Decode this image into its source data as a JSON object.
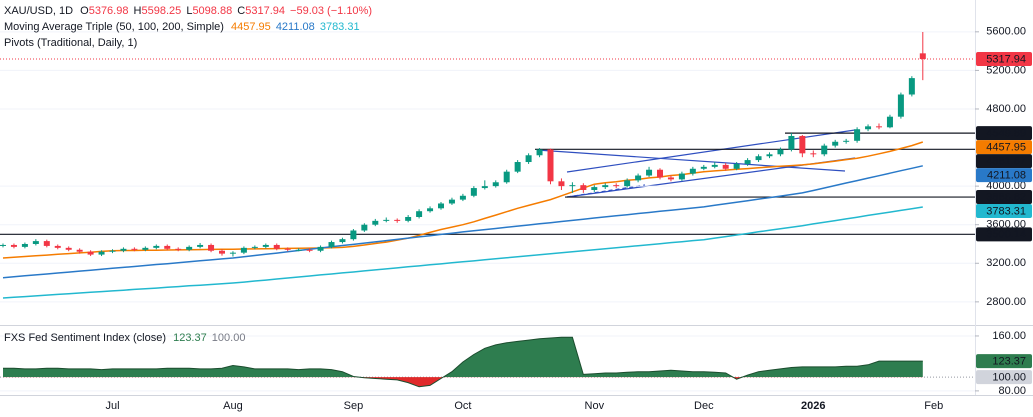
{
  "chart_data": [
    {
      "type": "candlestick",
      "title": "XAU/USD, 1D",
      "legend_letters": [
        "O",
        "H",
        "L",
        "C"
      ],
      "change": "−59.03 (−1.10%)",
      "ma_title": "Moving Average Triple (50, 100, 200, Simple)",
      "pivot_title": "Pivots (Traditional, Daily, 1)",
      "categories": [
        null,
        null,
        null,
        null,
        null,
        null,
        null,
        null,
        null,
        null,
        "Jul",
        null,
        null,
        null,
        null,
        null,
        null,
        null,
        null,
        null,
        null,
        "Aug",
        null,
        null,
        null,
        null,
        null,
        null,
        null,
        null,
        null,
        null,
        "Sep",
        null,
        null,
        null,
        null,
        null,
        null,
        null,
        null,
        null,
        "Oct",
        null,
        null,
        null,
        null,
        null,
        null,
        null,
        null,
        null,
        null,
        null,
        "Nov",
        null,
        null,
        null,
        null,
        null,
        null,
        null,
        null,
        null,
        "Dec",
        null,
        null,
        null,
        null,
        null,
        null,
        null,
        null,
        null,
        "2026",
        null,
        null,
        null,
        null,
        null,
        null,
        null,
        null,
        null,
        null,
        "Feb"
      ],
      "open": [
        3380,
        3390,
        3370,
        3400,
        3430,
        3380,
        3360,
        3340,
        3320,
        3290,
        3320,
        3330,
        3350,
        3340,
        3360,
        3380,
        3350,
        3340,
        3370,
        3390,
        3330,
        3300,
        3310,
        3360,
        3370,
        3390,
        3350,
        3340,
        3340,
        3330,
        3370,
        3420,
        3450,
        3540,
        3600,
        3640,
        3650,
        3640,
        3680,
        3740,
        3770,
        3820,
        3860,
        3900,
        3980,
        4000,
        4040,
        4150,
        4250,
        4320,
        4381,
        4050,
        4000,
        4010,
        3960,
        3990,
        4010,
        4000,
        4060,
        4110,
        4170,
        4090,
        4070,
        4130,
        4180,
        4200,
        4220,
        4180,
        4230,
        4270,
        4310,
        4330,
        4380,
        4520,
        4340,
        4330,
        4420,
        4460,
        4470,
        4590,
        4620,
        4610,
        4720,
        4950,
        5376.98,
        null
      ],
      "high": [
        3405,
        3405,
        3415,
        3450,
        3445,
        3395,
        3375,
        3355,
        3335,
        3335,
        3345,
        3365,
        3365,
        3375,
        3395,
        3395,
        3365,
        3385,
        3410,
        3405,
        3345,
        3325,
        3375,
        3385,
        3405,
        3405,
        3365,
        3355,
        3355,
        3385,
        3435,
        3465,
        3555,
        3615,
        3660,
        3675,
        3665,
        3700,
        3760,
        3790,
        3835,
        3880,
        3920,
        4000,
        4060,
        4060,
        4170,
        4270,
        4340,
        4395,
        4390,
        4080,
        4040,
        4030,
        4010,
        4030,
        4030,
        4080,
        4130,
        4200,
        4185,
        4110,
        4150,
        4200,
        4220,
        4250,
        4240,
        4250,
        4290,
        4330,
        4350,
        4400,
        4550,
        4530,
        4370,
        4440,
        4480,
        4490,
        4610,
        4640,
        4650,
        4740,
        4970,
        5140,
        5598.25,
        null
      ],
      "low": [
        3365,
        3355,
        3355,
        3385,
        3365,
        3345,
        3325,
        3300,
        3275,
        3275,
        3305,
        3315,
        3325,
        3325,
        3345,
        3335,
        3325,
        3325,
        3355,
        3315,
        3280,
        3270,
        3295,
        3345,
        3355,
        3335,
        3325,
        3325,
        3315,
        3315,
        3355,
        3405,
        3435,
        3525,
        3585,
        3625,
        3620,
        3625,
        3665,
        3725,
        3755,
        3805,
        3845,
        3885,
        3965,
        3985,
        4025,
        4135,
        4230,
        4300,
        4020,
        3960,
        3930,
        3930,
        3940,
        3970,
        3980,
        3985,
        4040,
        4095,
        4070,
        4050,
        4055,
        4110,
        4165,
        4185,
        4160,
        4165,
        4210,
        4250,
        4290,
        4310,
        4360,
        4300,
        4300,
        4310,
        4400,
        4440,
        4450,
        4570,
        4590,
        4600,
        4700,
        4930,
        5098.88,
        null
      ],
      "close": [
        3390,
        3370,
        3400,
        3430,
        3380,
        3360,
        3340,
        3320,
        3290,
        3320,
        3330,
        3350,
        3340,
        3360,
        3380,
        3350,
        3340,
        3370,
        3390,
        3330,
        3300,
        3310,
        3360,
        3370,
        3390,
        3350,
        3340,
        3340,
        3330,
        3370,
        3420,
        3450,
        3540,
        3600,
        3640,
        3650,
        3640,
        3680,
        3740,
        3770,
        3820,
        3860,
        3900,
        3980,
        4000,
        4040,
        4150,
        4250,
        4320,
        4381,
        4050,
        4000,
        4010,
        3960,
        3990,
        4010,
        4000,
        4060,
        4110,
        4170,
        4090,
        4070,
        4130,
        4180,
        4200,
        4220,
        4180,
        4230,
        4270,
        4310,
        4330,
        4380,
        4520,
        4340,
        4330,
        4420,
        4460,
        4470,
        4590,
        4620,
        4610,
        4720,
        4950,
        5120,
        5317.94,
        null
      ],
      "up_color": "#089981",
      "down_color": "#f23645",
      "series": [
        {
          "color": "#f57c00",
          "values": [
            3255,
            3263,
            3270,
            3278,
            3285,
            3293,
            3300,
            3308,
            3315,
            3323,
            3330,
            3332,
            3333,
            3335,
            3336,
            3338,
            3339,
            3341,
            3342,
            3344,
            3345,
            3346,
            3348,
            3349,
            3351,
            3352,
            3354,
            3355,
            3357,
            3358,
            3360,
            3365,
            3375,
            3390,
            3405,
            3420,
            3440,
            3460,
            3490,
            3520,
            3550,
            3575,
            3600,
            3630,
            3665,
            3700,
            3735,
            3770,
            3800,
            3830,
            3860,
            3900,
            3940,
            3980,
            4020,
            4035,
            4045,
            4060,
            4070,
            4085,
            4095,
            4110,
            4120,
            4135,
            4150,
            4158,
            4166,
            4174,
            4182,
            4190,
            4198,
            4206,
            4213,
            4220,
            4230,
            4245,
            4260,
            4275,
            4290,
            4310,
            4335,
            4360,
            4390,
            4420,
            4457.95,
            null
          ]
        },
        {
          "color": "#2979c8",
          "values": [
            3050,
            3060,
            3070,
            3080,
            3089,
            3099,
            3109,
            3119,
            3128,
            3138,
            3148,
            3157,
            3167,
            3177,
            3187,
            3196,
            3206,
            3216,
            3226,
            3235,
            3245,
            3255,
            3268,
            3281,
            3294,
            3306,
            3319,
            3332,
            3345,
            3358,
            3371,
            3384,
            3396,
            3409,
            3422,
            3435,
            3448,
            3461,
            3474,
            3486,
            3499,
            3512,
            3525,
            3537,
            3549,
            3561,
            3573,
            3585,
            3597,
            3609,
            3621,
            3633,
            3645,
            3657,
            3670,
            3681,
            3693,
            3704,
            3716,
            3727,
            3739,
            3750,
            3762,
            3773,
            3785,
            3801,
            3817,
            3833,
            3849,
            3865,
            3881,
            3897,
            3913,
            3930,
            3955,
            3981,
            4006,
            4032,
            4057,
            4083,
            4108,
            4134,
            4160,
            4185,
            4211.08,
            null
          ]
        },
        {
          "color": "#22b8cf",
          "values": [
            2840,
            2847,
            2855,
            2862,
            2870,
            2877,
            2884,
            2892,
            2899,
            2906,
            2914,
            2921,
            2929,
            2936,
            2943,
            2951,
            2958,
            2966,
            2973,
            2980,
            2988,
            2995,
            3005,
            3016,
            3026,
            3037,
            3047,
            3058,
            3068,
            3079,
            3089,
            3100,
            3110,
            3121,
            3131,
            3142,
            3152,
            3163,
            3173,
            3184,
            3194,
            3205,
            3215,
            3225,
            3236,
            3246,
            3257,
            3267,
            3278,
            3288,
            3299,
            3309,
            3319,
            3330,
            3340,
            3351,
            3361,
            3372,
            3382,
            3393,
            3403,
            3414,
            3424,
            3435,
            3445,
            3461,
            3477,
            3493,
            3509,
            3526,
            3542,
            3558,
            3574,
            3590,
            3608,
            3625,
            3643,
            3660,
            3678,
            3696,
            3713,
            3731,
            3748,
            3766,
            3783.31,
            null
          ]
        }
      ],
      "pivots": [
        4549.89,
        4381.67,
        3886.62,
        3500.14
      ],
      "ylim": [
        2560,
        5930
      ],
      "yticks": [
        {
          "value": 5600,
          "label": "5600.00"
        },
        {
          "value": 5200,
          "label": "5200.00"
        },
        {
          "value": 4800,
          "label": "4800.00"
        },
        {
          "value": 4000,
          "label": "4000.00"
        },
        {
          "value": 3600,
          "label": "3600.00"
        },
        {
          "value": 3200,
          "label": "3200.00"
        },
        {
          "value": 2800,
          "label": "2800.00"
        }
      ]
    },
    {
      "type": "area",
      "title": "FXS Fed Sentiment Index (close)",
      "values": [
        113,
        113,
        112,
        112,
        113,
        113,
        112,
        112,
        112,
        111,
        112,
        112,
        112,
        112,
        112,
        113,
        113,
        113,
        112,
        112,
        113,
        117,
        115,
        112,
        112,
        112,
        112,
        111,
        112,
        112,
        111,
        108,
        101,
        99,
        98,
        97,
        96,
        92,
        86,
        88,
        98,
        108,
        122,
        133,
        142,
        147,
        150,
        152,
        154,
        156,
        157,
        158,
        158,
        104,
        105,
        106,
        106,
        107,
        108,
        108,
        109,
        110,
        109,
        108,
        108,
        107,
        106,
        97,
        103,
        108,
        110,
        112,
        114,
        115,
        115,
        115,
        115,
        116,
        116,
        118,
        123.37,
        123.37,
        123.37,
        123.37,
        123.37,
        null
      ],
      "baseline": {
        "value": 100,
        "label": "100.00"
      },
      "up_color": "#2e7d4f",
      "down_color": "#e02a2a",
      "line_color": "#1b4d2e",
      "ylim": [
        74,
        174.5
      ],
      "yticks": [
        {
          "value": 160,
          "label": "160.00"
        },
        {
          "value": 80,
          "label": "80.00"
        }
      ]
    }
  ]
}
